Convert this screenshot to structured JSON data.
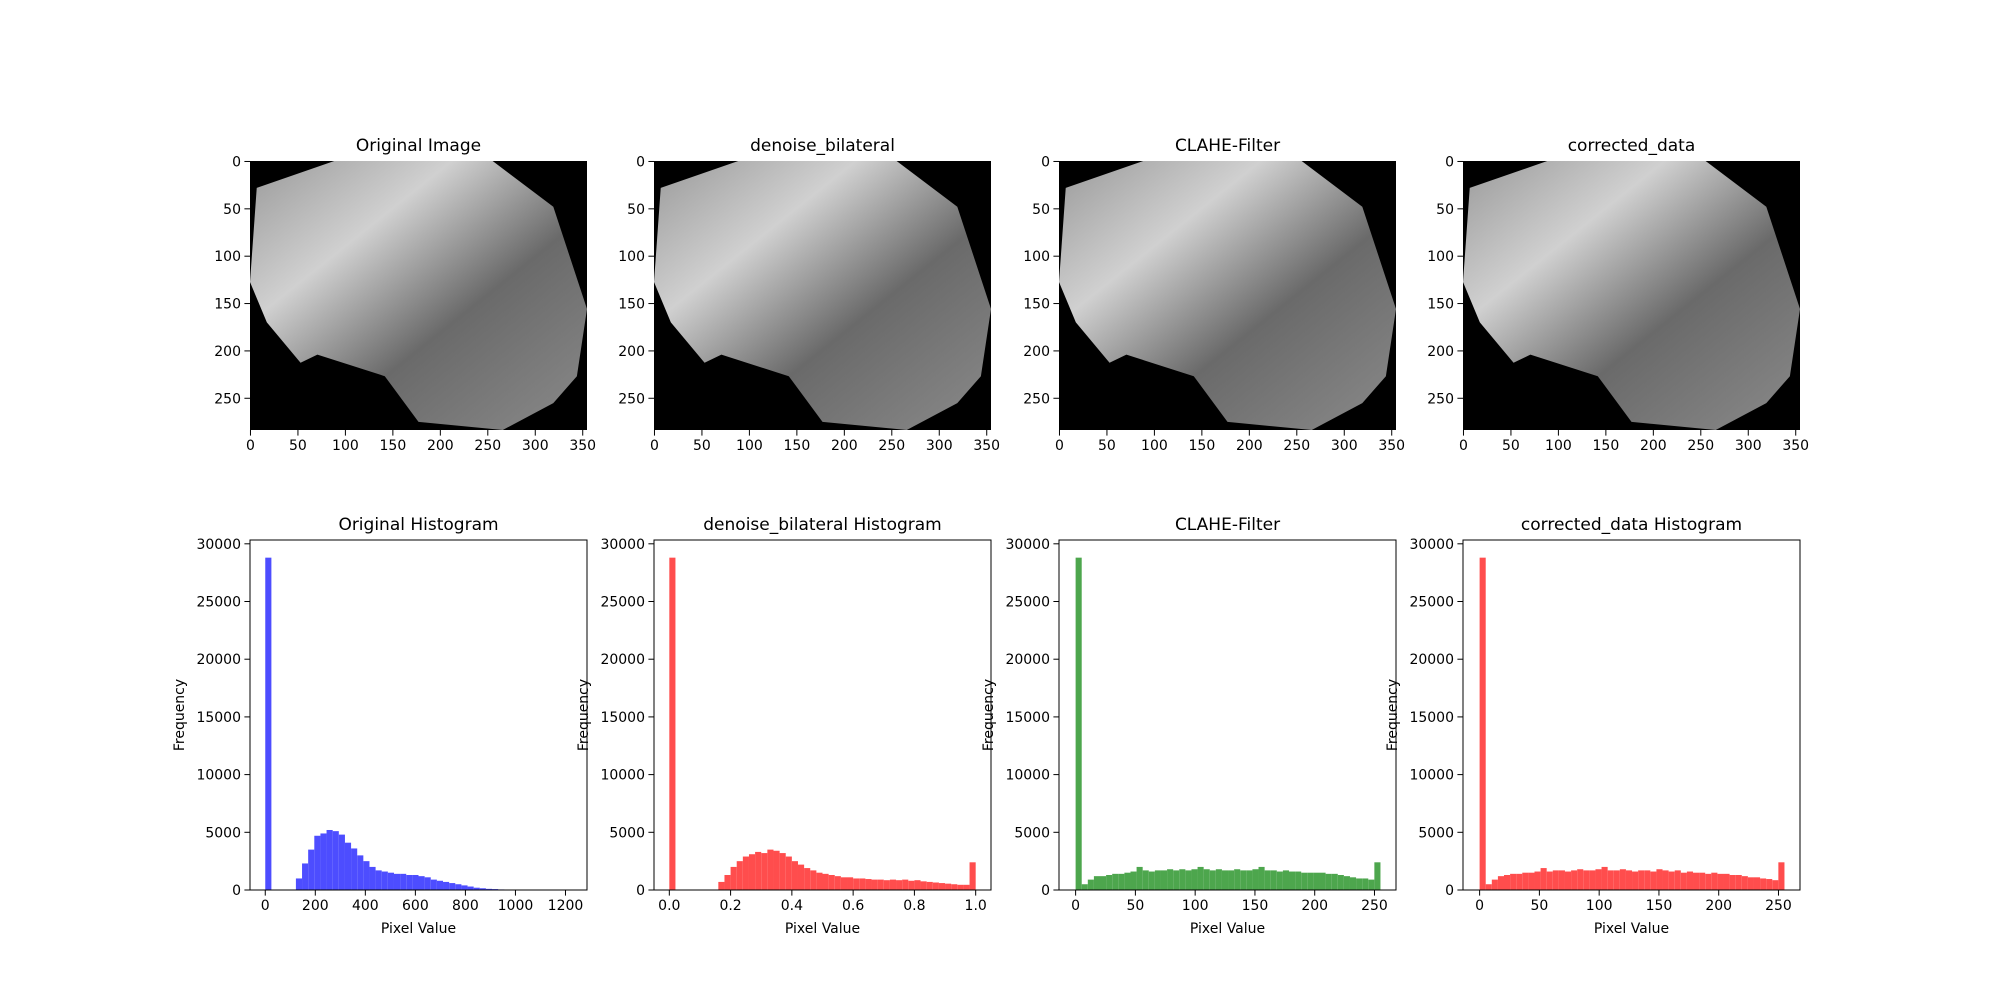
{
  "chart_data": [
    {
      "type": "image",
      "title": "Original Image",
      "xlim": [
        -0.5,
        354.5
      ],
      "ylim": [
        283.5,
        -0.5
      ],
      "xticks": [
        0,
        50,
        100,
        150,
        200,
        250,
        300,
        350
      ],
      "yticks": [
        0,
        50,
        100,
        150,
        200,
        250
      ]
    },
    {
      "type": "image",
      "title": "denoise_bilateral",
      "xlim": [
        -0.5,
        354.5
      ],
      "ylim": [
        283.5,
        -0.5
      ],
      "xticks": [
        0,
        50,
        100,
        150,
        200,
        250,
        300,
        350
      ],
      "yticks": [
        0,
        50,
        100,
        150,
        200,
        250
      ]
    },
    {
      "type": "image",
      "title": "CLAHE-Filter",
      "xlim": [
        -0.5,
        354.5
      ],
      "ylim": [
        283.5,
        -0.5
      ],
      "xticks": [
        0,
        50,
        100,
        150,
        200,
        250,
        300,
        350
      ],
      "yticks": [
        0,
        50,
        100,
        150,
        200,
        250
      ]
    },
    {
      "type": "image",
      "title": "corrected_data",
      "xlim": [
        -0.5,
        354.5
      ],
      "ylim": [
        283.5,
        -0.5
      ],
      "xticks": [
        0,
        50,
        100,
        150,
        200,
        250,
        300,
        350
      ],
      "yticks": [
        0,
        50,
        100,
        150,
        200,
        250
      ]
    },
    {
      "type": "histogram",
      "title": "Original Histogram",
      "xlabel": "Pixel Value",
      "ylabel": "Frequency",
      "color": "#4d4dff",
      "bins": [
        0,
        24.5,
        49,
        73.5,
        98,
        122.5,
        147,
        171.5,
        196,
        220.5,
        245,
        269.5,
        294,
        318.5,
        343,
        367.5,
        392,
        416.5,
        441,
        465.5,
        490,
        514.5,
        539,
        563.5,
        588,
        612.5,
        637,
        661.5,
        686,
        710.5,
        735,
        759.5,
        784,
        808.5,
        833,
        857.5,
        882,
        906.5,
        931,
        955.5,
        980,
        1004.5,
        1029,
        1053.5,
        1078,
        1102.5,
        1127,
        1151.5,
        1176,
        1200.5,
        1225
      ],
      "values": [
        28800,
        0,
        0,
        0,
        0,
        1000,
        2300,
        3500,
        4700,
        4900,
        5200,
        5100,
        4800,
        4100,
        3600,
        3000,
        2500,
        2000,
        1700,
        1600,
        1500,
        1400,
        1400,
        1300,
        1300,
        1200,
        1100,
        900,
        800,
        700,
        600,
        500,
        400,
        300,
        200,
        150,
        100,
        80,
        50,
        30,
        20,
        10,
        5,
        3,
        2,
        1,
        1,
        1,
        0,
        1
      ],
      "xlim": [
        -61,
        1286
      ],
      "ylim": [
        0,
        30330
      ],
      "xticks": [
        0,
        200,
        400,
        600,
        800,
        1000,
        1200
      ],
      "yticks": [
        0,
        5000,
        10000,
        15000,
        20000,
        25000,
        30000
      ]
    },
    {
      "type": "histogram",
      "title": "denoise_bilateral Histogram",
      "xlabel": "Pixel Value",
      "ylabel": "Frequency",
      "color": "#ff4d4d",
      "bins": [
        0,
        0.02,
        0.04,
        0.06,
        0.08,
        0.1,
        0.12,
        0.14,
        0.16,
        0.18,
        0.2,
        0.22,
        0.24,
        0.26,
        0.28,
        0.3,
        0.32,
        0.34,
        0.36,
        0.38,
        0.4,
        0.42,
        0.44,
        0.46,
        0.48,
        0.5,
        0.52,
        0.54,
        0.56,
        0.58,
        0.6,
        0.62,
        0.64,
        0.66,
        0.68,
        0.7,
        0.72,
        0.74,
        0.76,
        0.78,
        0.8,
        0.82,
        0.84,
        0.86,
        0.88,
        0.9,
        0.92,
        0.94,
        0.96,
        0.98,
        1
      ],
      "values": [
        28800,
        0,
        0,
        0,
        0,
        0,
        0,
        0,
        700,
        1300,
        2000,
        2500,
        2900,
        3100,
        3300,
        3200,
        3500,
        3400,
        3200,
        2900,
        2500,
        2200,
        1900,
        1700,
        1500,
        1400,
        1300,
        1200,
        1100,
        1100,
        1000,
        1000,
        950,
        900,
        900,
        850,
        900,
        850,
        900,
        800,
        850,
        750,
        700,
        650,
        600,
        550,
        500,
        450,
        450,
        2400
      ],
      "xlim": [
        -0.05,
        1.05
      ],
      "ylim": [
        0,
        30330
      ],
      "xticks": [
        {
          "value": 0,
          "label": "0.0"
        },
        0.2,
        0.4,
        0.6,
        0.8,
        {
          "value": 1,
          "label": "1.0"
        }
      ],
      "yticks": [
        0,
        5000,
        10000,
        15000,
        20000,
        25000,
        30000
      ]
    },
    {
      "type": "histogram",
      "title": "CLAHE-Filter",
      "xlabel": "Pixel Value",
      "ylabel": "Frequency",
      "color": "#4da64d",
      "bins": [
        0,
        5.1,
        10.2,
        15.3,
        20.4,
        25.5,
        30.6,
        35.7,
        40.8,
        45.9,
        51,
        56.1,
        61.2,
        66.3,
        71.4,
        76.5,
        81.6,
        86.7,
        91.8,
        96.9,
        102,
        107.1,
        112.2,
        117.3,
        122.4,
        127.5,
        132.6,
        137.7,
        142.8,
        147.9,
        153,
        158.1,
        163.2,
        168.3,
        173.4,
        178.5,
        183.6,
        188.7,
        193.8,
        198.9,
        204,
        209.1,
        214.2,
        219.3,
        224.4,
        229.5,
        234.6,
        239.7,
        244.8,
        249.9,
        255
      ],
      "values": [
        28800,
        500,
        900,
        1200,
        1200,
        1300,
        1400,
        1400,
        1500,
        1600,
        2000,
        1700,
        1600,
        1700,
        1700,
        1800,
        1700,
        1800,
        1700,
        1800,
        2000,
        1800,
        1700,
        1800,
        1700,
        1700,
        1800,
        1700,
        1700,
        1800,
        2000,
        1700,
        1700,
        1600,
        1700,
        1600,
        1600,
        1500,
        1500,
        1500,
        1500,
        1400,
        1400,
        1300,
        1200,
        1100,
        1000,
        1000,
        900,
        2400
      ],
      "xlim": [
        -13.9,
        268
      ],
      "ylim": [
        0,
        30330
      ],
      "xticks": [
        0,
        50,
        100,
        150,
        200,
        250
      ],
      "yticks": [
        0,
        5000,
        10000,
        15000,
        20000,
        25000,
        30000
      ]
    },
    {
      "type": "histogram",
      "title": "corrected_data Histogram",
      "xlabel": "Pixel Value",
      "ylabel": "Frequency",
      "color": "#ff4d4d",
      "bins": [
        0,
        5.1,
        10.2,
        15.3,
        20.4,
        25.5,
        30.6,
        35.7,
        40.8,
        45.9,
        51,
        56.1,
        61.2,
        66.3,
        71.4,
        76.5,
        81.6,
        86.7,
        91.8,
        96.9,
        102,
        107.1,
        112.2,
        117.3,
        122.4,
        127.5,
        132.6,
        137.7,
        142.8,
        147.9,
        153,
        158.1,
        163.2,
        168.3,
        173.4,
        178.5,
        183.6,
        188.7,
        193.8,
        198.9,
        204,
        209.1,
        214.2,
        219.3,
        224.4,
        229.5,
        234.6,
        239.7,
        244.8,
        249.9,
        255
      ],
      "values": [
        28800,
        500,
        900,
        1200,
        1300,
        1400,
        1400,
        1500,
        1500,
        1600,
        1900,
        1600,
        1700,
        1700,
        1600,
        1700,
        1800,
        1700,
        1700,
        1800,
        2000,
        1700,
        1700,
        1800,
        1700,
        1600,
        1700,
        1700,
        1600,
        1800,
        1700,
        1600,
        1700,
        1500,
        1600,
        1500,
        1500,
        1400,
        1500,
        1400,
        1400,
        1300,
        1300,
        1200,
        1100,
        1100,
        1000,
        950,
        850,
        2400
      ],
      "xlim": [
        -13.9,
        268
      ],
      "ylim": [
        0,
        30330
      ],
      "xticks": [
        0,
        50,
        100,
        150,
        200,
        250
      ],
      "yticks": [
        0,
        5000,
        10000,
        15000,
        20000,
        25000,
        30000
      ]
    }
  ]
}
